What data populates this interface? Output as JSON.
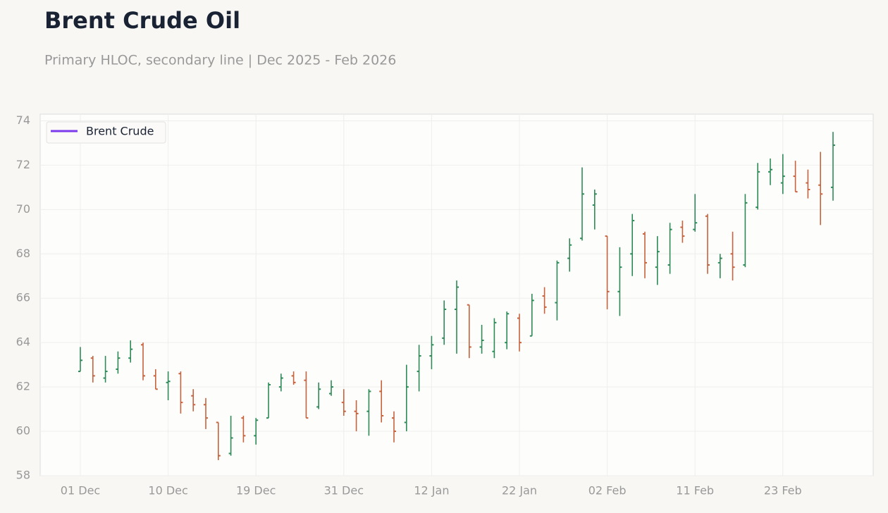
{
  "chart_data": {
    "type": "ohlc",
    "title": "Brent Crude Oil",
    "subtitle": "Primary HLOC, secondary line | Dec 2025 - Feb 2026",
    "categories": [
      "01 Dec",
      null,
      null,
      null,
      null,
      null,
      null,
      "10 Dec",
      null,
      null,
      null,
      null,
      null,
      null,
      "19 Dec",
      null,
      null,
      null,
      null,
      null,
      null,
      "31 Dec",
      null,
      null,
      null,
      null,
      null,
      null,
      "12 Jan",
      null,
      null,
      null,
      null,
      null,
      null,
      "22 Jan",
      null,
      null,
      null,
      null,
      null,
      null,
      "02 Feb",
      null,
      null,
      null,
      null,
      null,
      null,
      "11 Feb",
      null,
      null,
      null,
      null,
      null,
      null,
      "23 Feb",
      null,
      null,
      null,
      null
    ],
    "series": [
      {
        "name": "Brent Crude",
        "color": "#7c3aed",
        "open": [
          62.7,
          63.3,
          62.4,
          62.8,
          63.3,
          63.9,
          62.5,
          62.2,
          62.6,
          61.6,
          61.2,
          60.4,
          59.0,
          60.6,
          59.8,
          60.6,
          62.0,
          62.5,
          62.3,
          61.1,
          61.7,
          61.3,
          60.9,
          60.9,
          61.8,
          60.6,
          60.4,
          62.7,
          63.4,
          64.2,
          65.5,
          65.7,
          63.8,
          63.6,
          64.0,
          65.1,
          64.3,
          66.1,
          65.8,
          67.8,
          68.7,
          70.2,
          68.8,
          66.3,
          68.0,
          68.9,
          67.4,
          67.5,
          69.2,
          69.1,
          69.7,
          67.6,
          68.0,
          67.5,
          70.1,
          71.7,
          71.2,
          71.5,
          71.2,
          71.1,
          71.0
        ],
        "high": [
          63.8,
          63.4,
          63.4,
          63.6,
          64.1,
          64.0,
          62.8,
          62.7,
          62.7,
          61.9,
          61.5,
          60.4,
          60.7,
          60.7,
          60.6,
          62.2,
          62.6,
          62.7,
          62.7,
          62.2,
          62.3,
          61.9,
          61.4,
          61.9,
          62.3,
          60.9,
          63.0,
          63.9,
          64.3,
          65.9,
          66.8,
          65.7,
          64.8,
          65.1,
          65.4,
          65.3,
          66.2,
          66.5,
          67.7,
          68.7,
          71.9,
          70.9,
          68.8,
          68.3,
          69.8,
          69.0,
          68.8,
          69.4,
          69.5,
          70.7,
          69.8,
          68.0,
          69.0,
          70.7,
          72.1,
          72.3,
          72.5,
          72.2,
          71.8,
          72.6,
          73.5
        ],
        "low": [
          62.7,
          62.2,
          62.2,
          62.6,
          63.1,
          62.3,
          61.9,
          61.4,
          60.8,
          60.9,
          60.1,
          58.7,
          58.9,
          59.5,
          59.4,
          60.6,
          61.8,
          62.1,
          60.6,
          61.0,
          61.6,
          60.7,
          60.0,
          59.8,
          60.4,
          59.5,
          60.0,
          61.8,
          62.8,
          63.9,
          63.5,
          63.3,
          63.5,
          63.3,
          63.7,
          63.6,
          64.3,
          65.3,
          65.0,
          67.2,
          68.6,
          69.1,
          65.5,
          65.2,
          67.0,
          66.9,
          66.6,
          67.1,
          68.5,
          69.0,
          67.1,
          66.9,
          66.8,
          67.4,
          70.0,
          71.1,
          70.7,
          70.8,
          70.5,
          69.3,
          70.4
        ],
        "close": [
          63.2,
          62.5,
          62.7,
          63.3,
          63.7,
          62.5,
          61.9,
          62.25,
          61.3,
          61.2,
          60.6,
          58.9,
          59.7,
          59.8,
          60.5,
          62.1,
          62.4,
          62.2,
          60.6,
          61.9,
          62.0,
          60.9,
          60.8,
          61.8,
          60.7,
          60.0,
          62.0,
          63.4,
          63.9,
          65.5,
          66.5,
          63.8,
          64.1,
          64.9,
          65.3,
          64.0,
          65.9,
          65.6,
          67.6,
          68.4,
          70.7,
          70.7,
          66.3,
          67.4,
          69.5,
          67.6,
          68.1,
          69.1,
          68.8,
          69.4,
          67.5,
          67.8,
          67.4,
          70.3,
          71.7,
          71.8,
          71.5,
          70.8,
          70.9,
          70.7,
          72.9
        ]
      }
    ],
    "up_color": "#2e8b57",
    "down_color": "#c8623d",
    "ylim": [
      58,
      74.3
    ],
    "yticks": [
      58,
      60,
      62,
      64,
      66,
      68,
      70,
      72,
      74
    ],
    "grid": true,
    "legend": "upper left"
  }
}
